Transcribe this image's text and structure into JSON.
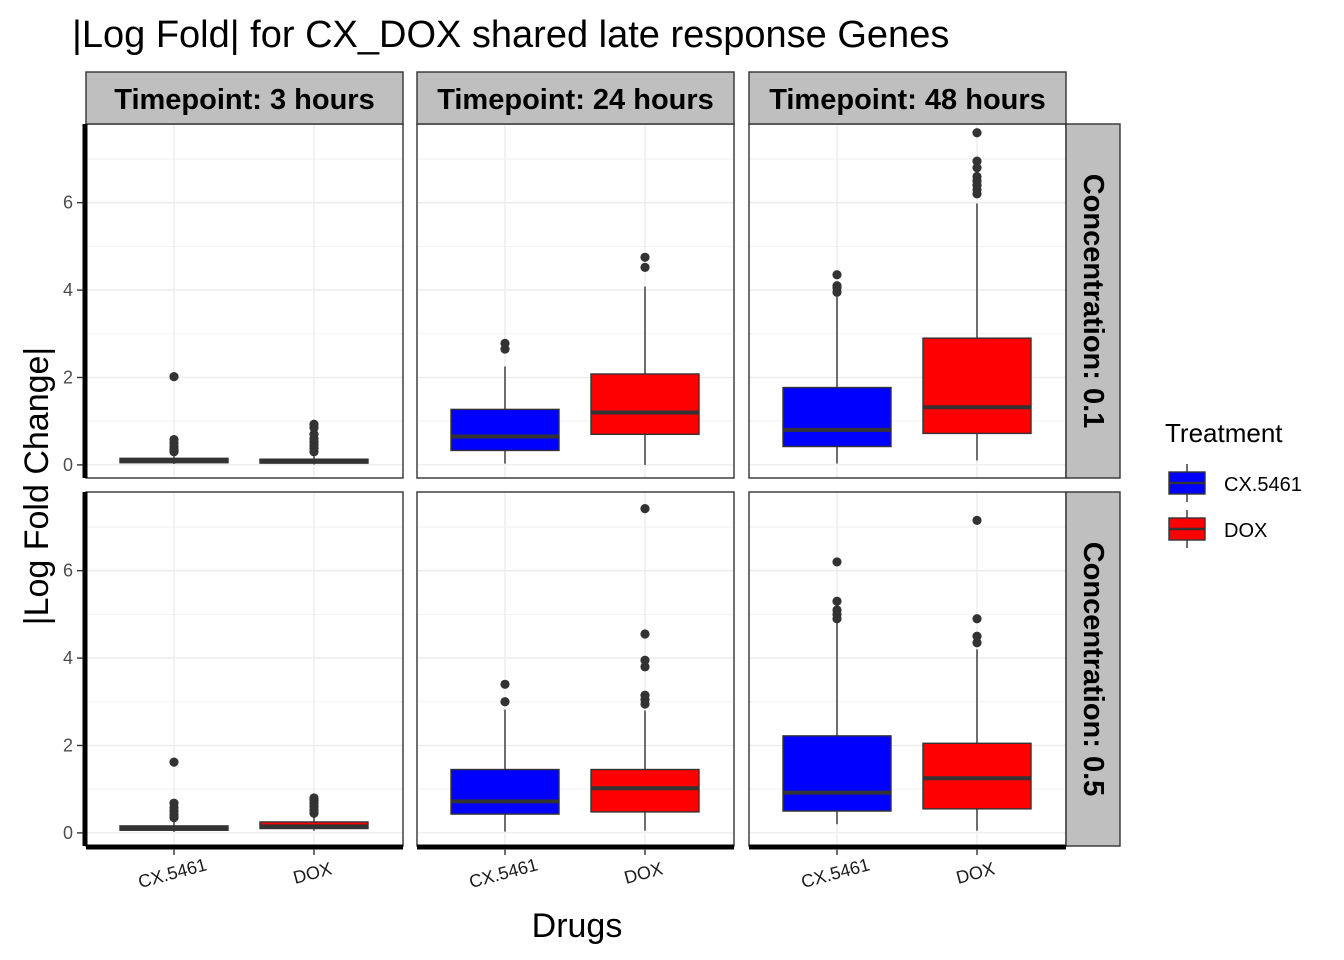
{
  "chart_data": {
    "type": "box",
    "title": "|Log Fold| for CX_DOX shared late response Genes",
    "xlabel": "Drugs",
    "ylabel": "|Log Fold Change|",
    "categories": [
      "CX.5461",
      "DOX"
    ],
    "ylim": [
      -0.3,
      7.8
    ],
    "y_ticks": [
      "0",
      "2",
      "4",
      "6"
    ],
    "grid": true,
    "facet_columns": [
      "Timepoint: 3 hours",
      "Timepoint: 24 hours",
      "Timepoint: 48 hours"
    ],
    "facet_rows": [
      "Concentration: 0.1",
      "Concentration: 0.5"
    ],
    "legend": {
      "title": "Treatment",
      "position": "right",
      "items": [
        {
          "label": "CX.5461",
          "color": "#0000ff"
        },
        {
          "label": "DOX",
          "color": "#ff0000"
        }
      ]
    },
    "panels": [
      {
        "row": 0,
        "col": 0,
        "boxes": [
          {
            "category": "CX.5461",
            "min": 0.02,
            "q1": 0.05,
            "median": 0.1,
            "q3": 0.15,
            "max": 0.2,
            "outliers": [
              0.3,
              0.35,
              0.42,
              0.5,
              0.58,
              2.02
            ]
          },
          {
            "category": "DOX",
            "min": 0.01,
            "q1": 0.04,
            "median": 0.08,
            "q3": 0.13,
            "max": 0.2,
            "outliers": [
              0.3,
              0.38,
              0.45,
              0.52,
              0.6,
              0.7,
              0.85,
              0.93
            ]
          }
        ]
      },
      {
        "row": 0,
        "col": 1,
        "boxes": [
          {
            "category": "CX.5461",
            "min": 0.03,
            "q1": 0.33,
            "median": 0.65,
            "q3": 1.27,
            "max": 2.25,
            "outliers": [
              2.65,
              2.78
            ]
          },
          {
            "category": "DOX",
            "min": 0.0,
            "q1": 0.7,
            "median": 1.2,
            "q3": 2.08,
            "max": 4.08,
            "outliers": [
              4.52,
              4.75
            ]
          }
        ]
      },
      {
        "row": 0,
        "col": 2,
        "boxes": [
          {
            "category": "CX.5461",
            "min": 0.03,
            "q1": 0.42,
            "median": 0.8,
            "q3": 1.77,
            "max": 3.85,
            "outliers": [
              3.95,
              4.05,
              4.1,
              4.35
            ]
          },
          {
            "category": "DOX",
            "min": 0.1,
            "q1": 0.72,
            "median": 1.32,
            "q3": 2.9,
            "max": 5.98,
            "outliers": [
              6.2,
              6.3,
              6.4,
              6.5,
              6.6,
              6.8,
              6.95,
              7.6
            ]
          }
        ]
      },
      {
        "row": 1,
        "col": 0,
        "boxes": [
          {
            "category": "CX.5461",
            "min": 0.02,
            "q1": 0.06,
            "median": 0.1,
            "q3": 0.16,
            "max": 0.28,
            "outliers": [
              0.35,
              0.42,
              0.5,
              0.58,
              0.68,
              1.62
            ]
          },
          {
            "category": "DOX",
            "min": 0.05,
            "q1": 0.1,
            "median": 0.15,
            "q3": 0.25,
            "max": 0.4,
            "outliers": [
              0.45,
              0.52,
              0.6,
              0.68,
              0.75,
              0.8
            ]
          }
        ]
      },
      {
        "row": 1,
        "col": 1,
        "boxes": [
          {
            "category": "CX.5461",
            "min": 0.03,
            "q1": 0.43,
            "median": 0.72,
            "q3": 1.45,
            "max": 2.82,
            "outliers": [
              3.0,
              3.4
            ]
          },
          {
            "category": "DOX",
            "min": 0.05,
            "q1": 0.48,
            "median": 1.02,
            "q3": 1.45,
            "max": 2.8,
            "outliers": [
              2.95,
              3.05,
              3.15,
              3.8,
              3.95,
              4.55,
              7.42
            ]
          }
        ]
      },
      {
        "row": 1,
        "col": 2,
        "boxes": [
          {
            "category": "CX.5461",
            "min": 0.2,
            "q1": 0.5,
            "median": 0.92,
            "q3": 2.22,
            "max": 4.85,
            "outliers": [
              4.9,
              5.0,
              5.1,
              5.3,
              6.2
            ]
          },
          {
            "category": "DOX",
            "min": 0.05,
            "q1": 0.55,
            "median": 1.25,
            "q3": 2.05,
            "max": 4.2,
            "outliers": [
              4.35,
              4.5,
              4.9,
              7.15
            ]
          }
        ]
      }
    ]
  }
}
